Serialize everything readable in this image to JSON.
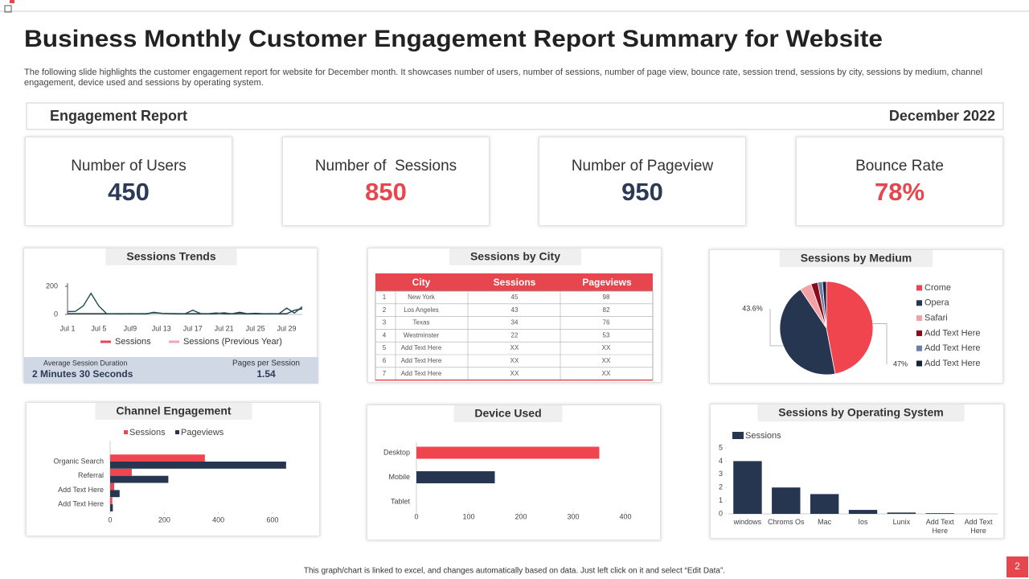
{
  "header": {
    "title": "Business Monthly Customer Engagement Report Summary for Website",
    "description": "The following slide highlights the customer engagement report for website for December month. It showcases number of users, number of sessions, number of page view, bounce rate, session trend, sessions by city,  sessions by medium, channel engagement, device used and sessions by operating system."
  },
  "banner": {
    "left": "Engagement Report",
    "right": "December 2022"
  },
  "kpis": [
    {
      "label": "Number of Users",
      "value": "450",
      "color": "#2b3a55"
    },
    {
      "label": "Number of  Sessions",
      "value": "850",
      "color": "#e8464f"
    },
    {
      "label": "Number of Pageview",
      "value": "950",
      "color": "#2b3a55"
    },
    {
      "label": "Bounce Rate",
      "value": "78%",
      "color": "#e8464f"
    }
  ],
  "sessions_trends": {
    "type": "line",
    "title": "Sessions Trends",
    "categories": [
      "Jul 1",
      null,
      null,
      null,
      "Jul 5",
      null,
      null,
      null,
      "Jul9",
      null,
      null,
      null,
      "Jul 13",
      null,
      null,
      null,
      "Jul 17",
      null,
      null,
      null,
      "Jul 21",
      null,
      null,
      null,
      "Jul 25",
      null,
      null,
      null,
      "Jul 29",
      null,
      null
    ],
    "series": [
      {
        "name": "Sessions",
        "color": "#e8464f",
        "line_color": "#1f5050",
        "values": [
          20,
          22,
          60,
          150,
          60,
          5,
          4,
          3,
          5,
          4,
          3,
          15,
          8,
          6,
          5,
          4,
          30,
          6,
          4,
          5,
          12,
          4,
          6,
          3,
          5,
          4,
          5,
          4,
          45,
          10,
          55
        ]
      },
      {
        "name": "Sessions (Previous Year)",
        "color": "#f4a6ab",
        "line_color": "#263550",
        "values": [
          5,
          5,
          5,
          5,
          5,
          5,
          5,
          5,
          5,
          5,
          5,
          12,
          8,
          6,
          5,
          5,
          5,
          5,
          5,
          10,
          5,
          5,
          15,
          5,
          8,
          5,
          5,
          5,
          5,
          30,
          40
        ]
      }
    ],
    "ylim": [
      0,
      200
    ],
    "yticks": [
      0,
      200
    ],
    "stats": [
      {
        "label": "Average Session Duration",
        "value": "2 Minutes 30 Seconds"
      },
      {
        "label": "Pages per Session",
        "value": "1.54"
      }
    ]
  },
  "sessions_by_city": {
    "title": "Sessions by City",
    "header_color": "#e8464f",
    "columns": [
      "City",
      "Sessions",
      "Pageviews"
    ],
    "rows": [
      [
        1,
        "New York",
        45,
        98
      ],
      [
        2,
        "Los Angeles",
        43,
        82
      ],
      [
        3,
        "Texas",
        34,
        76
      ],
      [
        4,
        "Westminster",
        22,
        53
      ],
      [
        5,
        "Add Text Here",
        "XX",
        "XX"
      ],
      [
        6,
        "Add Text Here",
        "XX",
        "XX"
      ],
      [
        7,
        "Add Text Here",
        "XX",
        "XX"
      ]
    ]
  },
  "sessions_by_medium": {
    "type": "pie",
    "title": "Sessions by Medium",
    "categories": [
      "Crome",
      "Opera",
      "Safari",
      "Add Text Here",
      "Add Text Here",
      "Add Text Here"
    ],
    "values": [
      47,
      43.6,
      4,
      2.4,
      1.6,
      1.4
    ],
    "value_labels": [
      "47%",
      "43.6%",
      null,
      null,
      null,
      null
    ],
    "colors": [
      "#f0444f",
      "#263550",
      "#f4a1a6",
      "#8b0a1a",
      "#6b7fa8",
      "#1a2238"
    ]
  },
  "channel_engagement": {
    "type": "hbar",
    "title": "Channel Engagement",
    "categories": [
      "Organic Search",
      "Referral",
      "Add Text Here",
      "Add Text Here"
    ],
    "series": [
      {
        "name": "Sessions",
        "color": "#f0444f",
        "values": [
          350,
          80,
          15,
          8
        ]
      },
      {
        "name": "Pageviews",
        "color": "#263550",
        "values": [
          650,
          215,
          35,
          10
        ]
      }
    ],
    "xlim": [
      0,
      700
    ],
    "xticks": [
      0,
      200,
      400,
      600
    ]
  },
  "device_used": {
    "type": "hbar",
    "title": "Device Used",
    "categories": [
      "Desktop",
      "Mobile",
      "Tablet"
    ],
    "values": [
      350,
      150,
      0
    ],
    "colors": [
      "#f0444f",
      "#263550",
      "#263550"
    ],
    "xlim": [
      0,
      400
    ],
    "xticks": [
      0,
      100,
      200,
      300,
      400
    ]
  },
  "sessions_by_os": {
    "type": "bar",
    "title": "Sessions by Operating System",
    "categories": [
      "windows",
      "Chroms Os",
      "Mac",
      "Ios",
      "Lunix",
      "Add Text Here",
      "Add Text Here"
    ],
    "series": [
      {
        "name": "Sessions",
        "color": "#263550",
        "values": [
          4,
          2,
          1.5,
          0.3,
          0.1,
          0.05,
          0
        ]
      }
    ],
    "ylim": [
      0,
      5
    ],
    "yticks": [
      0,
      1,
      2,
      3,
      4,
      5
    ]
  },
  "footer": {
    "note": "This graph/chart is linked to excel, and changes automatically based on data. Just left click on it and select “Edit Data”.",
    "page": "2"
  }
}
